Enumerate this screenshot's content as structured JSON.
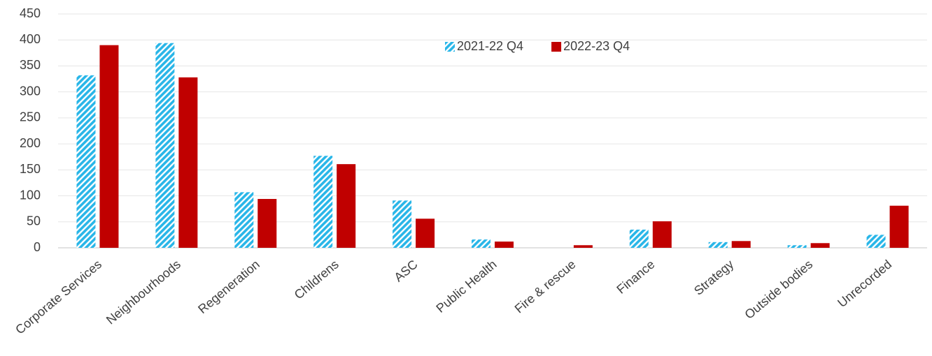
{
  "chart_data": {
    "type": "bar",
    "categories": [
      "Corporate Services",
      "Neighbourhoods",
      "Regeneration",
      "Childrens",
      "ASC",
      "Public Health",
      "Fire & rescue",
      "Finance",
      "Strategy",
      "Outside bodies",
      "Unrecorded"
    ],
    "series": [
      {
        "name": "2021-22 Q4",
        "color": "#29b6e8",
        "hatched": true,
        "values": [
          332,
          394,
          107,
          177,
          91,
          16,
          0,
          35,
          11,
          5,
          25
        ]
      },
      {
        "name": "2022-23 Q4",
        "color": "#c00000",
        "hatched": false,
        "values": [
          390,
          328,
          94,
          161,
          56,
          12,
          5,
          51,
          13,
          9,
          81
        ]
      }
    ],
    "ylim": [
      0,
      450
    ],
    "yticks": [
      0,
      50,
      100,
      150,
      200,
      250,
      300,
      350,
      400,
      450
    ],
    "grid": true,
    "legend": "top"
  }
}
